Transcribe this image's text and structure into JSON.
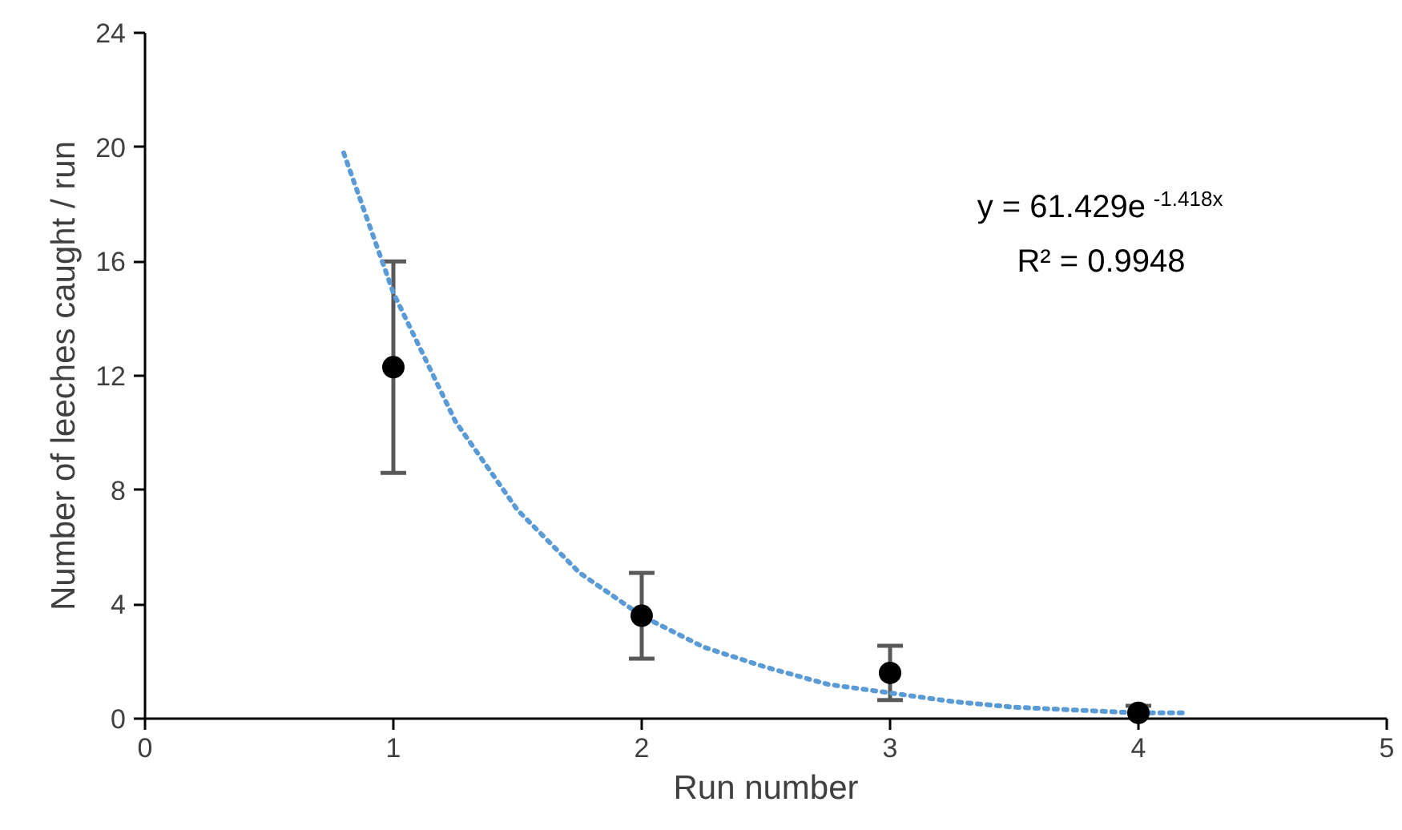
{
  "chart_data": {
    "type": "scatter",
    "xlabel": "Run number",
    "ylabel": "Number of leeches caught / run",
    "xlim": [
      0,
      5
    ],
    "ylim": [
      0,
      24
    ],
    "xticks": [
      0,
      1,
      2,
      3,
      4,
      5
    ],
    "yticks": [
      0,
      4,
      8,
      12,
      16,
      20,
      24
    ],
    "grid": false,
    "marker": "circle",
    "annotations": [
      "y = 61.429e$^{-1.418x}$",
      "R² = 0.9948"
    ],
    "series": [
      {
        "color": "#000000",
        "x": [
          1,
          2,
          3,
          4
        ],
        "values": [
          12.3,
          3.6,
          1.6,
          0.2
        ],
        "errors": [
          3.7,
          1.5,
          0.95,
          0.25
        ]
      },
      {
        "type": "line",
        "marker": "none",
        "color": "#5b9bd5",
        "line_style": "dotted",
        "x": [
          0.8,
          1,
          1.25,
          1.5,
          1.75,
          2,
          2.25,
          2.5,
          2.75,
          3,
          3.25,
          3.5,
          3.75,
          4,
          4.2
        ],
        "values": [
          19.8,
          14.9,
          10.4,
          7.3,
          5.1,
          3.6,
          2.5,
          1.8,
          1.2,
          0.9,
          0.6,
          0.4,
          0.3,
          0.2,
          0.2
        ]
      }
    ]
  }
}
